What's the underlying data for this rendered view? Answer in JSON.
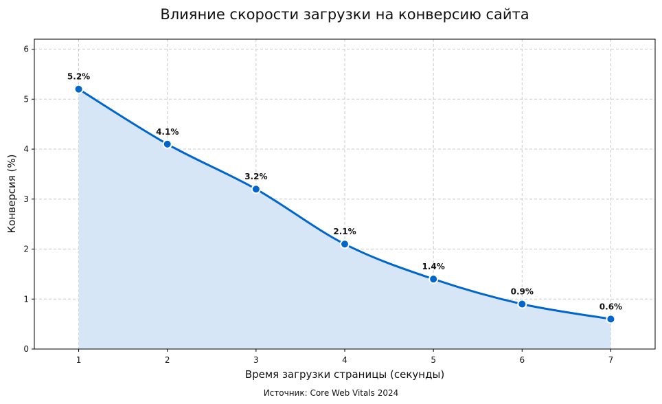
{
  "chart_data": {
    "type": "area",
    "title": "Влияние скорости загрузки на конверсию сайта",
    "xlabel": "Время загрузки страницы (секунды)",
    "ylabel": "Конверсия (%)",
    "source": "Источник: Core Web Vitals 2024",
    "x": [
      1,
      2,
      3,
      4,
      5,
      6,
      7
    ],
    "y": [
      5.2,
      4.1,
      3.2,
      2.1,
      1.4,
      0.9,
      0.6
    ],
    "data_labels": [
      "5.2%",
      "4.1%",
      "3.2%",
      "2.1%",
      "1.4%",
      "0.9%",
      "0.6%"
    ],
    "x_ticks": [
      "1",
      "2",
      "3",
      "4",
      "5",
      "6",
      "7"
    ],
    "y_ticks": [
      "0",
      "1",
      "2",
      "3",
      "4",
      "5",
      "6"
    ],
    "xlim": [
      0.5,
      7.5
    ],
    "ylim": [
      0,
      6.2
    ],
    "grid": true,
    "colors": {
      "line": "#0066cc",
      "fill": "#d6e6f7",
      "marker_edge": "#ffffff"
    }
  }
}
